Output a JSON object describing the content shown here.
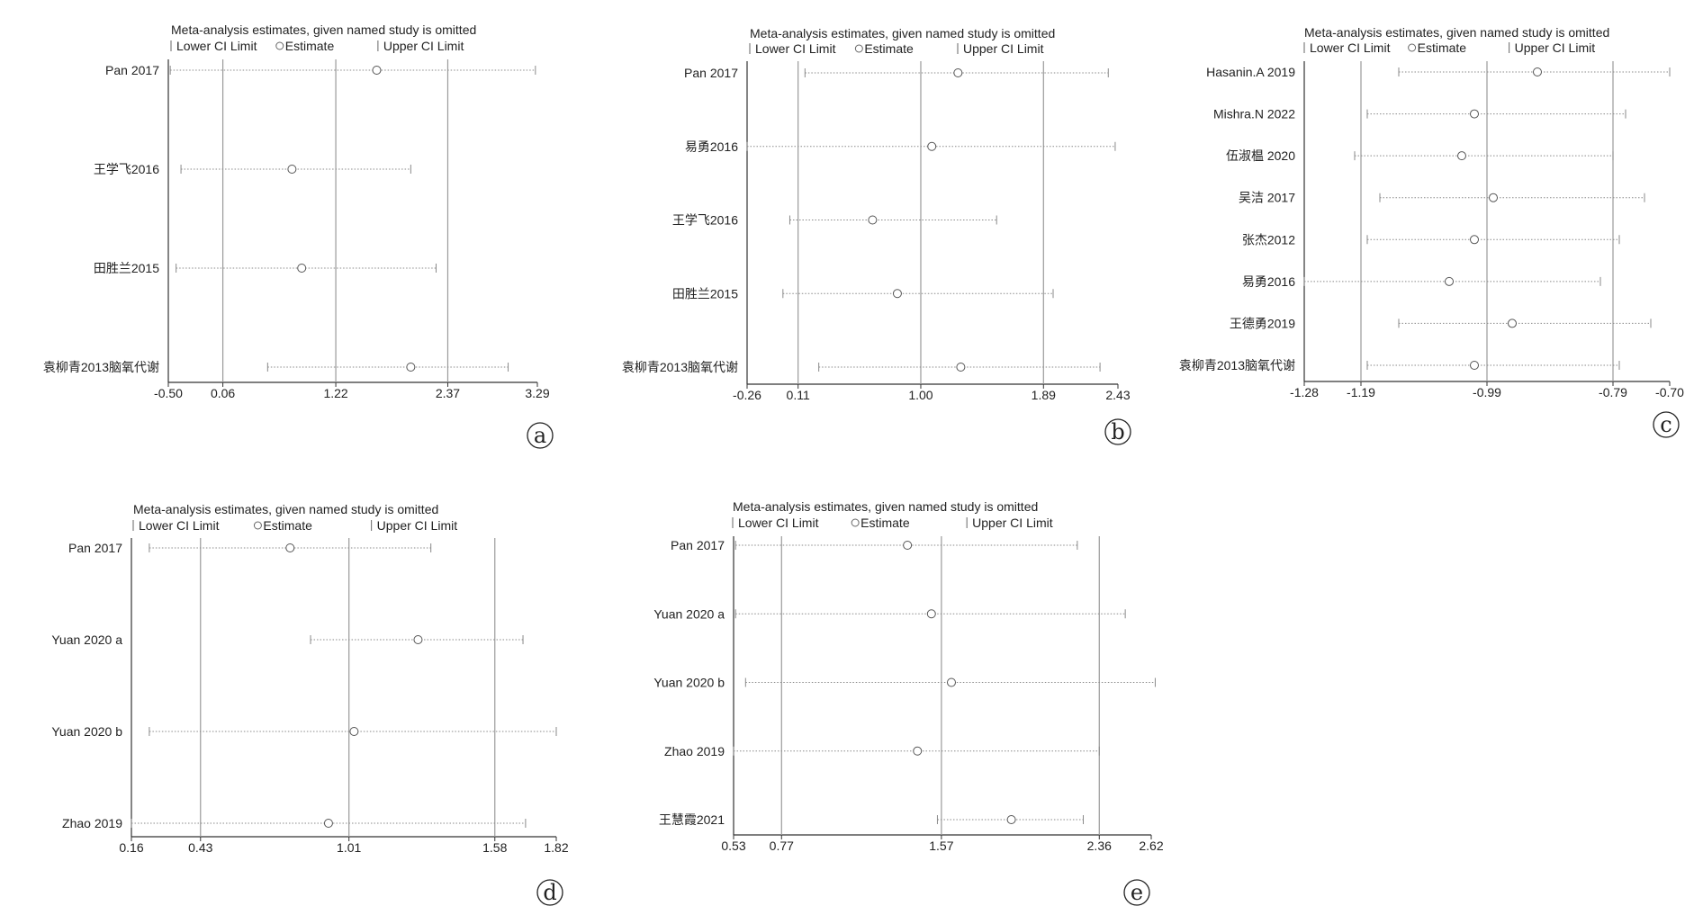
{
  "figure": {
    "chart_data": [
      {
        "type": "forest",
        "panel_label": "a",
        "title": "Meta-analysis estimates, given named study is omitted",
        "legend": [
          "Lower CI Limit",
          "Estimate",
          "Upper CI Limit"
        ],
        "xlim": [
          -0.5,
          3.29
        ],
        "x_ticks": [
          -0.5,
          0.06,
          1.22,
          2.37,
          3.29
        ],
        "x_tick_labels": [
          "-0.50",
          "0.06",
          "1.22",
          "2.37",
          "3.29"
        ],
        "reference_lines": [
          0.06,
          1.22,
          2.37
        ],
        "studies": [
          {
            "name": "Pan 2017",
            "lower": -0.48,
            "estimate": 1.64,
            "upper": 3.27
          },
          {
            "name": "王学飞2016",
            "lower": -0.37,
            "estimate": 0.77,
            "upper": 1.99
          },
          {
            "name": "田胜兰2015",
            "lower": -0.42,
            "estimate": 0.87,
            "upper": 2.25
          },
          {
            "name": "袁柳青2013脑氧代谢",
            "lower": 0.52,
            "estimate": 1.99,
            "upper": 2.99
          }
        ]
      },
      {
        "type": "forest",
        "panel_label": "b",
        "title": "Meta-analysis estimates, given named study is omitted",
        "legend": [
          "Lower CI Limit",
          "Estimate",
          "Upper CI Limit"
        ],
        "xlim": [
          -0.26,
          2.43
        ],
        "x_ticks": [
          -0.26,
          0.11,
          1.0,
          1.89,
          2.43
        ],
        "x_tick_labels": [
          "-0.26",
          "0.11",
          "1.00",
          "1.89",
          "2.43"
        ],
        "reference_lines": [
          0.11,
          1.0,
          1.89
        ],
        "studies": [
          {
            "name": "Pan 2017",
            "lower": 0.16,
            "estimate": 1.27,
            "upper": 2.36
          },
          {
            "name": "易勇2016",
            "lower": -0.26,
            "estimate": 1.08,
            "upper": 2.41
          },
          {
            "name": "王学飞2016",
            "lower": 0.05,
            "estimate": 0.65,
            "upper": 1.55
          },
          {
            "name": "田胜兰2015",
            "lower": 0.0,
            "estimate": 0.83,
            "upper": 1.96
          },
          {
            "name": "袁柳青2013脑氧代谢",
            "lower": 0.26,
            "estimate": 1.29,
            "upper": 2.3
          }
        ]
      },
      {
        "type": "forest",
        "panel_label": "c",
        "title": "Meta-analysis estimates, given named study is omitted",
        "legend": [
          "Lower CI Limit",
          "Estimate",
          "Upper CI Limit"
        ],
        "xlim": [
          -1.28,
          -0.7
        ],
        "x_ticks": [
          -1.28,
          -1.19,
          -0.99,
          -0.79,
          -0.7
        ],
        "x_tick_labels": [
          "-1.28",
          "-1.19",
          "-0.99",
          "-0.79",
          "-0.70"
        ],
        "reference_lines": [
          -1.19,
          -0.99,
          -0.79
        ],
        "studies": [
          {
            "name": "Hasanin.A 2019",
            "lower": -1.13,
            "estimate": -0.91,
            "upper": -0.7
          },
          {
            "name": "Mishra.N 2022",
            "lower": -1.18,
            "estimate": -1.01,
            "upper": -0.77
          },
          {
            "name": "伍淑榅 2020",
            "lower": -1.2,
            "estimate": -1.03,
            "upper": -0.79
          },
          {
            "name": "吴洁 2017",
            "lower": -1.16,
            "estimate": -0.98,
            "upper": -0.74
          },
          {
            "name": "张杰2012",
            "lower": -1.18,
            "estimate": -1.01,
            "upper": -0.78
          },
          {
            "name": "易勇2016",
            "lower": -1.28,
            "estimate": -1.05,
            "upper": -0.81
          },
          {
            "name": "王德勇2019",
            "lower": -1.13,
            "estimate": -0.95,
            "upper": -0.73
          },
          {
            "name": "袁柳青2013脑氧代谢",
            "lower": -1.18,
            "estimate": -1.01,
            "upper": -0.78
          }
        ]
      },
      {
        "type": "forest",
        "panel_label": "d",
        "title": "Meta-analysis estimates, given named study is omitted",
        "legend": [
          "Lower CI Limit",
          "Estimate",
          "Upper CI Limit"
        ],
        "xlim": [
          0.16,
          1.82
        ],
        "x_ticks": [
          0.16,
          0.43,
          1.01,
          1.58,
          1.82
        ],
        "x_tick_labels": [
          "0.16",
          "0.43",
          "1.01",
          "1.58",
          "1.82"
        ],
        "reference_lines": [
          0.43,
          1.01,
          1.58
        ],
        "studies": [
          {
            "name": "Pan 2017",
            "lower": 0.23,
            "estimate": 0.78,
            "upper": 1.33
          },
          {
            "name": "Yuan 2020 a",
            "lower": 0.86,
            "estimate": 1.28,
            "upper": 1.69
          },
          {
            "name": "Yuan 2020 b",
            "lower": 0.23,
            "estimate": 1.03,
            "upper": 1.82
          },
          {
            "name": "Zhao 2019",
            "lower": 0.16,
            "estimate": 0.93,
            "upper": 1.7
          }
        ]
      },
      {
        "type": "forest",
        "panel_label": "e",
        "title": "Meta-analysis estimates, given named study is omitted",
        "legend": [
          "Lower CI Limit",
          "Estimate",
          "Upper CI Limit"
        ],
        "xlim": [
          0.53,
          2.62
        ],
        "x_ticks": [
          0.53,
          0.77,
          1.57,
          2.36,
          2.62
        ],
        "x_tick_labels": [
          "0.53",
          "0.77",
          "1.57",
          "2.36",
          "2.62"
        ],
        "reference_lines": [
          0.77,
          1.57,
          2.36
        ],
        "studies": [
          {
            "name": "Pan 2017",
            "lower": 0.54,
            "estimate": 1.4,
            "upper": 2.25
          },
          {
            "name": "Yuan 2020 a",
            "lower": 0.54,
            "estimate": 1.52,
            "upper": 2.49
          },
          {
            "name": "Yuan 2020 b",
            "lower": 0.59,
            "estimate": 1.62,
            "upper": 2.64
          },
          {
            "name": "Zhao 2019",
            "lower": 0.53,
            "estimate": 1.45,
            "upper": 2.36
          },
          {
            "name": "王慧霞2021",
            "lower": 1.55,
            "estimate": 1.92,
            "upper": 2.28
          }
        ]
      }
    ]
  },
  "style": {
    "axis_color": "#333333",
    "ref_line_color": "#9a9a9a",
    "ci_line_color": "#8a8a8a",
    "estimate_marker_color": "#555555"
  }
}
